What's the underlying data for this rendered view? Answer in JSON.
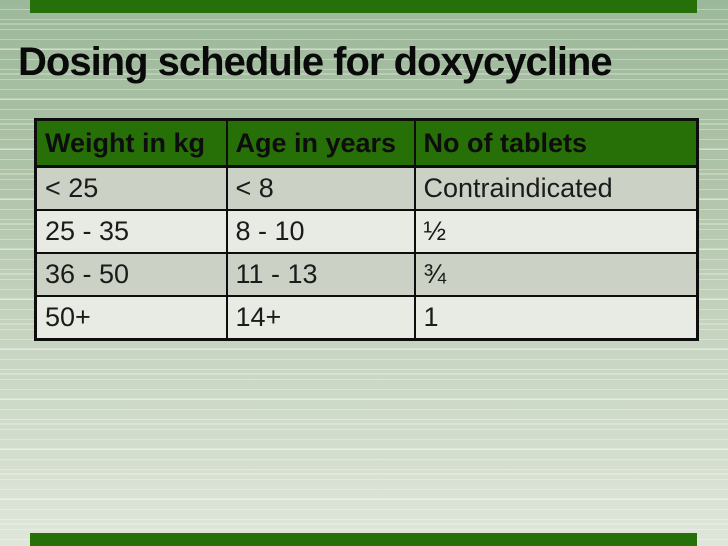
{
  "slide": {
    "title": "Dosing schedule for doxycycline"
  },
  "table": {
    "headers": [
      "Weight in kg",
      "Age in years",
      "No of tablets"
    ],
    "rows": [
      [
        "< 25",
        "< 8",
        "Contraindicated"
      ],
      [
        "25 - 35",
        "8 - 10",
        "½"
      ],
      [
        "36 - 50",
        "11 - 13",
        "¾"
      ],
      [
        "50+",
        "14+",
        "1"
      ]
    ]
  },
  "colors": {
    "header_green": "#277008",
    "edge_bar_green": "#26700a",
    "row_band_dark": "#cbd2c5",
    "row_band_light": "#e8ebe3",
    "table_border": "#0d0d0d",
    "background_top": "#9cb89a",
    "background_bottom": "#dfe6da",
    "title_color": "#0a0a0a"
  }
}
